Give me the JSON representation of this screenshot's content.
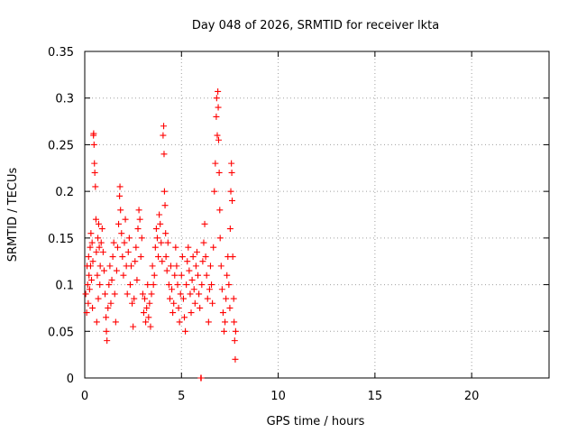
{
  "chart_data": {
    "type": "scatter",
    "title": "Day 048 of 2026, SRMTID for receiver lkta",
    "xlabel": "GPS time / hours",
    "ylabel": "SRMTID / TECUs",
    "xlim": [
      0,
      24
    ],
    "ylim": [
      0,
      0.35
    ],
    "xticks": [
      0,
      5,
      10,
      15,
      20
    ],
    "xtick_labels": [
      "0",
      "5",
      "10",
      "15",
      "20"
    ],
    "yticks": [
      0,
      0.05,
      0.1,
      0.15,
      0.2,
      0.25,
      0.3,
      0.35
    ],
    "ytick_labels": [
      "0",
      "0.05",
      "0.1",
      "0.15",
      "0.2",
      "0.25",
      "0.3",
      "0.35"
    ],
    "grid": true,
    "marker": "plus",
    "color": "#ff0000",
    "series": [
      {
        "name": "SRMTID",
        "points": [
          [
            0.05,
            0.09
          ],
          [
            0.1,
            0.07
          ],
          [
            0.12,
            0.12
          ],
          [
            0.15,
            0.1
          ],
          [
            0.18,
            0.08
          ],
          [
            0.2,
            0.13
          ],
          [
            0.22,
            0.11
          ],
          [
            0.25,
            0.095
          ],
          [
            0.28,
            0.14
          ],
          [
            0.3,
            0.12
          ],
          [
            0.32,
            0.155
          ],
          [
            0.35,
            0.105
          ],
          [
            0.38,
            0.145
          ],
          [
            0.4,
            0.075
          ],
          [
            0.42,
            0.125
          ],
          [
            0.45,
            0.26
          ],
          [
            0.46,
            0.262
          ],
          [
            0.48,
            0.25
          ],
          [
            0.5,
            0.23
          ],
          [
            0.52,
            0.22
          ],
          [
            0.55,
            0.205
          ],
          [
            0.58,
            0.17
          ],
          [
            0.6,
            0.135
          ],
          [
            0.62,
            0.06
          ],
          [
            0.65,
            0.11
          ],
          [
            0.68,
            0.15
          ],
          [
            0.7,
            0.085
          ],
          [
            0.72,
            0.165
          ],
          [
            0.75,
            0.14
          ],
          [
            0.78,
            0.1
          ],
          [
            0.8,
            0.12
          ],
          [
            0.85,
            0.145
          ],
          [
            0.9,
            0.16
          ],
          [
            0.95,
            0.135
          ],
          [
            1.0,
            0.115
          ],
          [
            1.05,
            0.09
          ],
          [
            1.1,
            0.065
          ],
          [
            1.12,
            0.05
          ],
          [
            1.15,
            0.04
          ],
          [
            1.2,
            0.075
          ],
          [
            1.25,
            0.1
          ],
          [
            1.3,
            0.12
          ],
          [
            1.35,
            0.08
          ],
          [
            1.4,
            0.105
          ],
          [
            1.45,
            0.13
          ],
          [
            1.5,
            0.145
          ],
          [
            1.55,
            0.09
          ],
          [
            1.6,
            0.06
          ],
          [
            1.65,
            0.115
          ],
          [
            1.7,
            0.14
          ],
          [
            1.75,
            0.165
          ],
          [
            1.8,
            0.195
          ],
          [
            1.82,
            0.205
          ],
          [
            1.85,
            0.18
          ],
          [
            1.9,
            0.155
          ],
          [
            1.95,
            0.13
          ],
          [
            2.0,
            0.11
          ],
          [
            2.05,
            0.145
          ],
          [
            2.1,
            0.17
          ],
          [
            2.15,
            0.12
          ],
          [
            2.2,
            0.09
          ],
          [
            2.25,
            0.135
          ],
          [
            2.3,
            0.15
          ],
          [
            2.35,
            0.1
          ],
          [
            2.4,
            0.12
          ],
          [
            2.45,
            0.08
          ],
          [
            2.5,
            0.055
          ],
          [
            2.55,
            0.085
          ],
          [
            2.6,
            0.125
          ],
          [
            2.65,
            0.14
          ],
          [
            2.7,
            0.105
          ],
          [
            2.75,
            0.16
          ],
          [
            2.8,
            0.18
          ],
          [
            2.85,
            0.17
          ],
          [
            2.9,
            0.13
          ],
          [
            2.95,
            0.15
          ],
          [
            3.0,
            0.09
          ],
          [
            3.05,
            0.07
          ],
          [
            3.1,
            0.085
          ],
          [
            3.15,
            0.06
          ],
          [
            3.2,
            0.075
          ],
          [
            3.25,
            0.1
          ],
          [
            3.3,
            0.065
          ],
          [
            3.35,
            0.08
          ],
          [
            3.4,
            0.055
          ],
          [
            3.45,
            0.09
          ],
          [
            3.5,
            0.12
          ],
          [
            3.55,
            0.1
          ],
          [
            3.6,
            0.11
          ],
          [
            3.65,
            0.14
          ],
          [
            3.7,
            0.16
          ],
          [
            3.75,
            0.15
          ],
          [
            3.8,
            0.13
          ],
          [
            3.85,
            0.175
          ],
          [
            3.9,
            0.165
          ],
          [
            3.95,
            0.145
          ],
          [
            4.0,
            0.125
          ],
          [
            4.05,
            0.26
          ],
          [
            4.08,
            0.27
          ],
          [
            4.1,
            0.24
          ],
          [
            4.12,
            0.2
          ],
          [
            4.15,
            0.185
          ],
          [
            4.18,
            0.155
          ],
          [
            4.2,
            0.13
          ],
          [
            4.25,
            0.115
          ],
          [
            4.3,
            0.145
          ],
          [
            4.35,
            0.1
          ],
          [
            4.4,
            0.085
          ],
          [
            4.45,
            0.12
          ],
          [
            4.5,
            0.095
          ],
          [
            4.55,
            0.07
          ],
          [
            4.6,
            0.08
          ],
          [
            4.65,
            0.11
          ],
          [
            4.7,
            0.14
          ],
          [
            4.75,
            0.12
          ],
          [
            4.8,
            0.1
          ],
          [
            4.85,
            0.075
          ],
          [
            4.9,
            0.06
          ],
          [
            4.95,
            0.09
          ],
          [
            5.0,
            0.11
          ],
          [
            5.05,
            0.13
          ],
          [
            5.1,
            0.085
          ],
          [
            5.15,
            0.065
          ],
          [
            5.2,
            0.05
          ],
          [
            5.25,
            0.1
          ],
          [
            5.3,
            0.125
          ],
          [
            5.35,
            0.14
          ],
          [
            5.4,
            0.115
          ],
          [
            5.45,
            0.09
          ],
          [
            5.5,
            0.07
          ],
          [
            5.55,
            0.105
          ],
          [
            5.6,
            0.13
          ],
          [
            5.65,
            0.095
          ],
          [
            5.7,
            0.08
          ],
          [
            5.75,
            0.12
          ],
          [
            5.8,
            0.135
          ],
          [
            5.85,
            0.11
          ],
          [
            5.9,
            0.09
          ],
          [
            5.95,
            0.075
          ],
          [
            6.0,
            0.0
          ],
          [
            6.02,
            0.0
          ],
          [
            6.05,
            0.1
          ],
          [
            6.1,
            0.125
          ],
          [
            6.15,
            0.145
          ],
          [
            6.2,
            0.165
          ],
          [
            6.25,
            0.13
          ],
          [
            6.3,
            0.11
          ],
          [
            6.35,
            0.085
          ],
          [
            6.4,
            0.06
          ],
          [
            6.45,
            0.095
          ],
          [
            6.5,
            0.12
          ],
          [
            6.55,
            0.1
          ],
          [
            6.6,
            0.08
          ],
          [
            6.65,
            0.14
          ],
          [
            6.7,
            0.2
          ],
          [
            6.75,
            0.23
          ],
          [
            6.8,
            0.28
          ],
          [
            6.82,
            0.3
          ],
          [
            6.85,
            0.26
          ],
          [
            6.88,
            0.307
          ],
          [
            6.9,
            0.29
          ],
          [
            6.92,
            0.255
          ],
          [
            6.95,
            0.22
          ],
          [
            6.98,
            0.18
          ],
          [
            7.0,
            0.15
          ],
          [
            7.05,
            0.12
          ],
          [
            7.1,
            0.095
          ],
          [
            7.15,
            0.07
          ],
          [
            7.2,
            0.05
          ],
          [
            7.25,
            0.06
          ],
          [
            7.3,
            0.085
          ],
          [
            7.35,
            0.11
          ],
          [
            7.4,
            0.13
          ],
          [
            7.45,
            0.1
          ],
          [
            7.5,
            0.075
          ],
          [
            7.52,
            0.16
          ],
          [
            7.55,
            0.2
          ],
          [
            7.58,
            0.23
          ],
          [
            7.6,
            0.22
          ],
          [
            7.62,
            0.19
          ],
          [
            7.65,
            0.13
          ],
          [
            7.7,
            0.085
          ],
          [
            7.72,
            0.06
          ],
          [
            7.75,
            0.04
          ],
          [
            7.78,
            0.02
          ],
          [
            7.8,
            0.05
          ]
        ]
      }
    ]
  }
}
